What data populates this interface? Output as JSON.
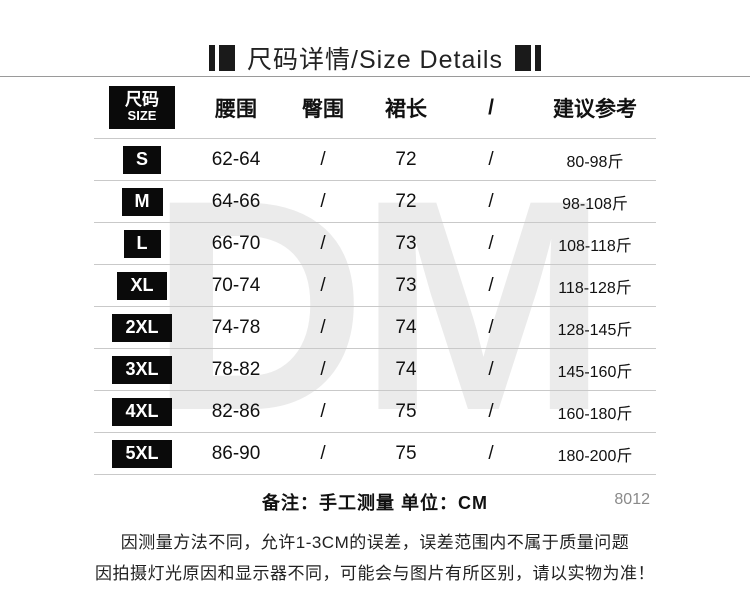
{
  "title": {
    "text": "尺码详情/Size Details"
  },
  "watermark": "DM",
  "table": {
    "header": {
      "size_top": "尺码",
      "size_bottom": "SIZE",
      "columns": [
        "腰围",
        "臀围",
        "裙长",
        "/",
        "建议参考"
      ]
    },
    "rows": [
      {
        "size": "S",
        "cells": [
          "62-64",
          "/",
          "72",
          "/",
          "80-98斤"
        ]
      },
      {
        "size": "M",
        "cells": [
          "64-66",
          "/",
          "72",
          "/",
          "98-108斤"
        ]
      },
      {
        "size": "L",
        "cells": [
          "66-70",
          "/",
          "73",
          "/",
          "108-118斤"
        ]
      },
      {
        "size": "XL",
        "cells": [
          "70-74",
          "/",
          "73",
          "/",
          "118-128斤"
        ]
      },
      {
        "size": "2XL",
        "cells": [
          "74-78",
          "/",
          "74",
          "/",
          "128-145斤"
        ]
      },
      {
        "size": "3XL",
        "cells": [
          "78-82",
          "/",
          "74",
          "/",
          "145-160斤"
        ]
      },
      {
        "size": "4XL",
        "cells": [
          "82-86",
          "/",
          "75",
          "/",
          "160-180斤"
        ]
      },
      {
        "size": "5XL",
        "cells": [
          "86-90",
          "/",
          "75",
          "/",
          "180-200斤"
        ]
      }
    ]
  },
  "notes": {
    "remark": "备注：手工测量 单位：CM",
    "code": "8012",
    "line1": "因测量方法不同，允许1-3CM的误差，误差范围内不属于质量问题",
    "line2": "因拍摄灯光原因和显示器不同，可能会与图片有所区别，请以实物为准！"
  }
}
